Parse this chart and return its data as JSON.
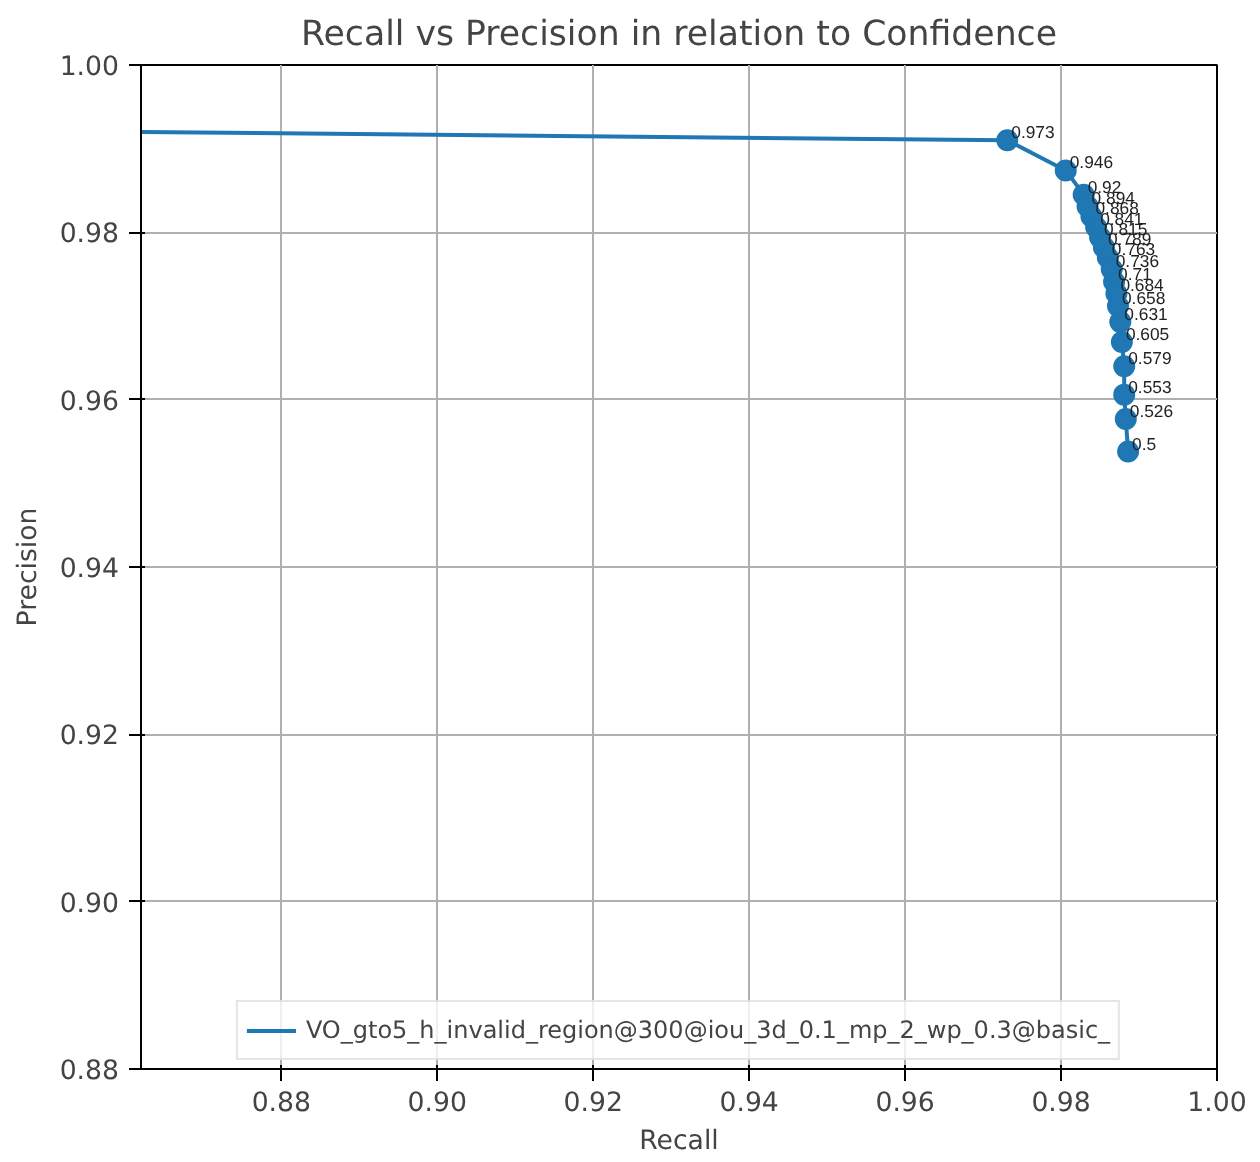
{
  "chart_data": {
    "type": "line",
    "title": "Recall vs Precision in relation to Confidence",
    "xlabel": "Recall",
    "ylabel": "Precision",
    "xlim": [
      0.862,
      1.0
    ],
    "ylim": [
      0.88,
      1.0
    ],
    "xticks": [
      0.88,
      {
        "value": 0.9,
        "label": "0.90"
      },
      0.92,
      0.94,
      0.96,
      0.98,
      {
        "value": 1.0,
        "label": "1.00"
      }
    ],
    "yticks": [
      0.88,
      {
        "value": 0.9,
        "label": "0.90"
      },
      0.92,
      0.94,
      0.96,
      0.98,
      {
        "value": 1.0,
        "label": "1.00"
      }
    ],
    "grid": true,
    "legend": "bottom",
    "series": [
      {
        "name": "VO_gto5_h_invalid_region@300@iou_3d_0.1_mp_2_wp_0.3@basic_",
        "color": "#1f77b4",
        "marker": "none",
        "x": [
          0.862,
          0.9731,
          0.9806,
          0.9829,
          0.9834,
          0.9839,
          0.9845,
          0.985,
          0.9855,
          0.986,
          0.9865,
          0.9868,
          0.9871,
          0.9873,
          0.9876,
          0.9878,
          0.9881,
          0.9881,
          0.9883,
          0.9886
        ],
        "values": [
          0.992,
          0.991,
          0.9874,
          0.9845,
          0.9831,
          0.9819,
          0.9806,
          0.9794,
          0.9782,
          0.977,
          0.9756,
          0.9741,
          0.9727,
          0.9712,
          0.9693,
          0.9669,
          0.964,
          0.9606,
          0.9577,
          0.9538
        ]
      },
      {
        "type": "scatter",
        "color": "#1f77b4",
        "marker": "circle",
        "x": [
          0.9731,
          0.9806,
          0.9829,
          0.9834,
          0.9839,
          0.9845,
          0.985,
          0.9855,
          0.986,
          0.9865,
          0.9868,
          0.9871,
          0.9873,
          0.9876,
          0.9878,
          0.9881,
          0.9881,
          0.9883,
          0.9886
        ],
        "values": [
          0.991,
          0.9874,
          0.9845,
          0.9831,
          0.9819,
          0.9806,
          0.9794,
          0.9782,
          0.977,
          0.9756,
          0.9741,
          0.9727,
          0.9712,
          0.9693,
          0.9669,
          0.964,
          0.9606,
          0.9577,
          0.9538
        ]
      }
    ],
    "annotations": [
      {
        "text": "0.973",
        "x": 0.9731,
        "y": 0.991
      },
      {
        "text": "0.946",
        "x": 0.9806,
        "y": 0.9874
      },
      {
        "text": "0.92",
        "x": 0.9829,
        "y": 0.9845
      },
      {
        "text": "0.894",
        "x": 0.9834,
        "y": 0.9831
      },
      {
        "text": "0.868",
        "x": 0.9839,
        "y": 0.9819
      },
      {
        "text": "0.841",
        "x": 0.9845,
        "y": 0.9806
      },
      {
        "text": "0.815",
        "x": 0.985,
        "y": 0.9794
      },
      {
        "text": "0.789",
        "x": 0.9855,
        "y": 0.9782
      },
      {
        "text": "0.763",
        "x": 0.986,
        "y": 0.977
      },
      {
        "text": "0.736",
        "x": 0.9865,
        "y": 0.9756
      },
      {
        "text": "0.71",
        "x": 0.9868,
        "y": 0.9741
      },
      {
        "text": "0.684",
        "x": 0.9871,
        "y": 0.9727
      },
      {
        "text": "0.658",
        "x": 0.9873,
        "y": 0.9712
      },
      {
        "text": "0.631",
        "x": 0.9876,
        "y": 0.9693
      },
      {
        "text": "0.605",
        "x": 0.9878,
        "y": 0.9669
      },
      {
        "text": "0.579",
        "x": 0.9881,
        "y": 0.964
      },
      {
        "text": "0.553",
        "x": 0.9881,
        "y": 0.9606
      },
      {
        "text": "0.526",
        "x": 0.9883,
        "y": 0.9577
      },
      {
        "text": "0.5",
        "x": 0.9886,
        "y": 0.9538
      }
    ]
  }
}
